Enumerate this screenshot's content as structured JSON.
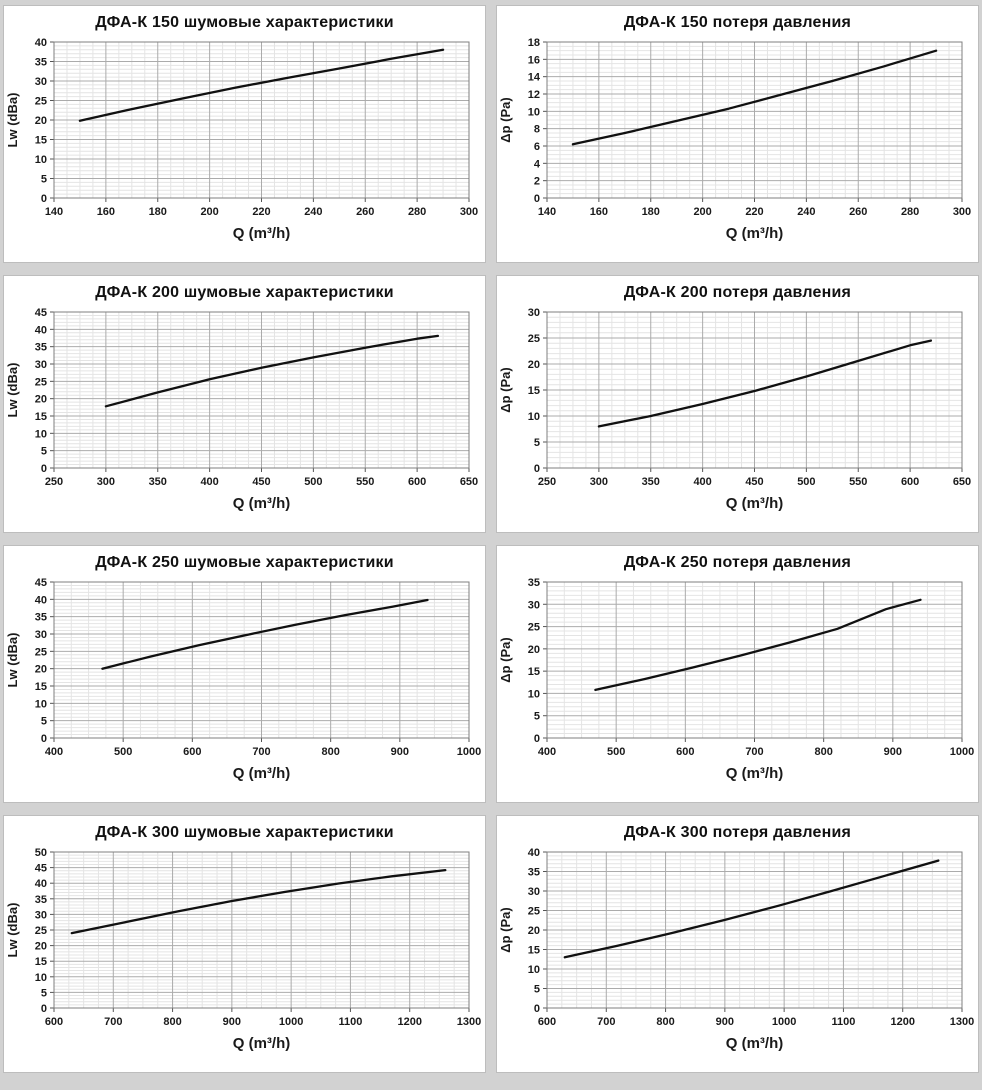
{
  "page": {
    "background": "#d2d2d2",
    "layout": "4 rows x 2 columns of line charts"
  },
  "colors": {
    "curve": "#111111",
    "grid_major": "#ababab",
    "grid_minor": "#e4e4e4",
    "plot_border": "#7f7f7f",
    "tick_mark": "#555555",
    "panel_bg": "#ffffff",
    "panel_border": "#bdbdbd",
    "text": "#1a1a1a"
  },
  "chart_data": [
    {
      "type": "line",
      "title": "ДФА-К 150 шумовые характеристики",
      "xlabel": "Q (m³/h)",
      "ylabel": "Lw (dBa)",
      "xlim": [
        140,
        300
      ],
      "xtick_step": 20,
      "ylim": [
        0,
        40
      ],
      "ytick_step": 5,
      "x_minor_divisions": 4,
      "y_minor_divisions": 5,
      "grid": true,
      "legend": "none",
      "series": [
        {
          "name": "Lw",
          "points": [
            [
              150,
              19.8
            ],
            [
              170,
              22.8
            ],
            [
              190,
              25.6
            ],
            [
              210,
              28.3
            ],
            [
              230,
              30.8
            ],
            [
              250,
              33.2
            ],
            [
              270,
              35.7
            ],
            [
              290,
              38
            ]
          ]
        }
      ]
    },
    {
      "type": "line",
      "title": "ДФА-К 150 потеря давления",
      "xlabel": "Q (m³/h)",
      "ylabel": "Δp (Pa)",
      "xlim": [
        140,
        300
      ],
      "xtick_step": 20,
      "ylim": [
        0,
        18
      ],
      "ytick_step": 2,
      "x_minor_divisions": 4,
      "y_minor_divisions": 4,
      "grid": true,
      "legend": "none",
      "series": [
        {
          "name": "Δp",
          "points": [
            [
              150,
              6.2
            ],
            [
              170,
              7.5
            ],
            [
              190,
              8.9
            ],
            [
              210,
              10.3
            ],
            [
              230,
              11.9
            ],
            [
              250,
              13.5
            ],
            [
              270,
              15.2
            ],
            [
              290,
              17
            ]
          ]
        }
      ]
    },
    {
      "type": "line",
      "title": "ДФА-К 200 шумовые характеристики",
      "xlabel": "Q (m³/h)",
      "ylabel": "Lw (dBa)",
      "xlim": [
        250,
        650
      ],
      "xtick_step": 50,
      "ylim": [
        0,
        45
      ],
      "ytick_step": 5,
      "x_minor_divisions": 4,
      "y_minor_divisions": 5,
      "grid": true,
      "legend": "none",
      "series": [
        {
          "name": "Lw",
          "points": [
            [
              300,
              17.8
            ],
            [
              350,
              21.8
            ],
            [
              400,
              25.6
            ],
            [
              450,
              28.9
            ],
            [
              500,
              31.9
            ],
            [
              550,
              34.7
            ],
            [
              600,
              37.3
            ],
            [
              620,
              38.1
            ]
          ]
        }
      ]
    },
    {
      "type": "line",
      "title": "ДФА-К 200 потеря давления",
      "xlabel": "Q (m³/h)",
      "ylabel": "Δp (Pa)",
      "xlim": [
        250,
        650
      ],
      "xtick_step": 50,
      "ylim": [
        0,
        30
      ],
      "ytick_step": 5,
      "x_minor_divisions": 4,
      "y_minor_divisions": 5,
      "grid": true,
      "legend": "none",
      "series": [
        {
          "name": "Δp",
          "points": [
            [
              300,
              8
            ],
            [
              350,
              10
            ],
            [
              400,
              12.3
            ],
            [
              450,
              14.8
            ],
            [
              500,
              17.6
            ],
            [
              550,
              20.6
            ],
            [
              600,
              23.6
            ],
            [
              620,
              24.5
            ]
          ]
        }
      ]
    },
    {
      "type": "line",
      "title": "ДФА-К 250 шумовые характеристики",
      "xlabel": "Q (m³/h)",
      "ylabel": "Lw (dBa)",
      "xlim": [
        400,
        1000
      ],
      "xtick_step": 100,
      "ylim": [
        0,
        45
      ],
      "ytick_step": 5,
      "x_minor_divisions": 4,
      "y_minor_divisions": 5,
      "grid": true,
      "legend": "none",
      "series": [
        {
          "name": "Lw",
          "points": [
            [
              470,
              20
            ],
            [
              540,
              23.5
            ],
            [
              610,
              26.8
            ],
            [
              680,
              29.8
            ],
            [
              750,
              32.7
            ],
            [
              820,
              35.4
            ],
            [
              890,
              37.9
            ],
            [
              940,
              39.8
            ]
          ]
        }
      ]
    },
    {
      "type": "line",
      "title": "ДФА-К 250 потеря давления",
      "xlabel": "Q (m³/h)",
      "ylabel": "Δp (Pa)",
      "xlim": [
        400,
        1000
      ],
      "xtick_step": 100,
      "ylim": [
        0,
        35
      ],
      "ytick_step": 5,
      "x_minor_divisions": 4,
      "y_minor_divisions": 5,
      "grid": true,
      "legend": "none",
      "series": [
        {
          "name": "Δp",
          "points": [
            [
              470,
              10.8
            ],
            [
              540,
              13.2
            ],
            [
              610,
              15.8
            ],
            [
              680,
              18.5
            ],
            [
              750,
              21.4
            ],
            [
              820,
              24.5
            ],
            [
              890,
              28.9
            ],
            [
              940,
              31
            ]
          ]
        }
      ]
    },
    {
      "type": "line",
      "title": "ДФА-К 300 шумовые характеристики",
      "xlabel": "Q (m³/h)",
      "ylabel": "Lw (dBa)",
      "xlim": [
        600,
        1300
      ],
      "xtick_step": 100,
      "ylim": [
        0,
        50
      ],
      "ytick_step": 5,
      "x_minor_divisions": 4,
      "y_minor_divisions": 5,
      "grid": true,
      "legend": "none",
      "series": [
        {
          "name": "Lw",
          "points": [
            [
              630,
              24
            ],
            [
              720,
              27.5
            ],
            [
              810,
              31
            ],
            [
              900,
              34.3
            ],
            [
              990,
              37.2
            ],
            [
              1080,
              39.9
            ],
            [
              1170,
              42.2
            ],
            [
              1260,
              44.2
            ]
          ]
        }
      ]
    },
    {
      "type": "line",
      "title": "ДФА-К 300 потеря давления",
      "xlabel": "Q (m³/h)",
      "ylabel": "Δp (Pa)",
      "xlim": [
        600,
        1300
      ],
      "xtick_step": 100,
      "ylim": [
        0,
        40
      ],
      "ytick_step": 5,
      "x_minor_divisions": 4,
      "y_minor_divisions": 5,
      "grid": true,
      "legend": "none",
      "series": [
        {
          "name": "Δp",
          "points": [
            [
              630,
              13
            ],
            [
              720,
              16
            ],
            [
              810,
              19.2
            ],
            [
              900,
              22.6
            ],
            [
              990,
              26.2
            ],
            [
              1080,
              30
            ],
            [
              1170,
              33.9
            ],
            [
              1260,
              37.8
            ]
          ]
        }
      ]
    }
  ]
}
